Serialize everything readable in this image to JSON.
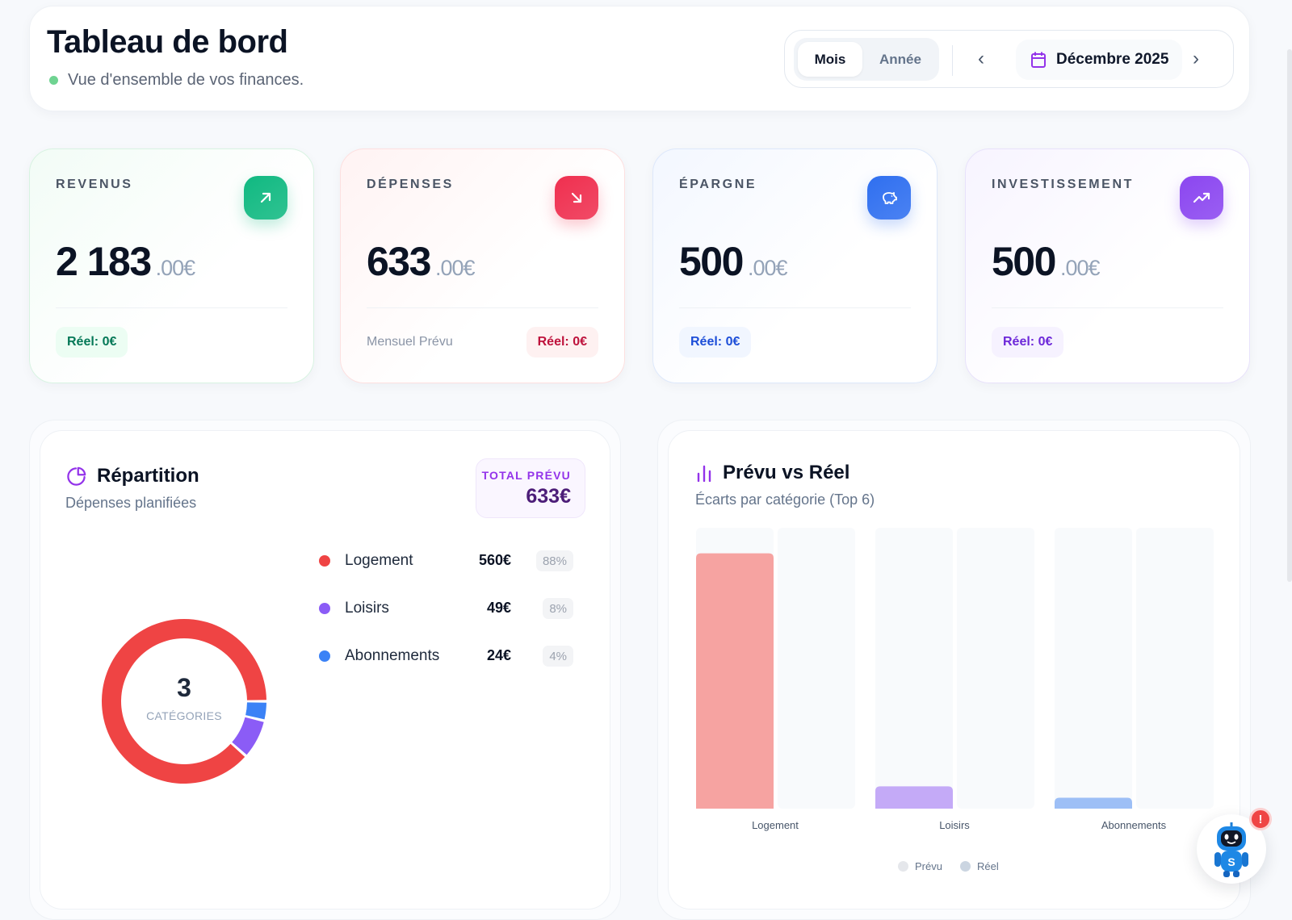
{
  "header": {
    "title": "Tableau de bord",
    "subtitle": "Vue d'ensemble de vos finances.",
    "view_toggle": {
      "options": [
        "Mois",
        "Année"
      ],
      "selected": "Mois"
    },
    "period": "Décembre 2025",
    "icons": {
      "prev": "chevron-left-icon",
      "next": "chevron-right-icon",
      "calendar": "calendar-icon"
    }
  },
  "stats": [
    {
      "label": "REVENUS",
      "int": "2 183",
      "dec": ".00€",
      "reel": "Réel: 0€",
      "icon": "arrow-up-right-icon",
      "color": "#10b981",
      "pill_bg": "#ecfdf3",
      "pill_fg": "#047857"
    },
    {
      "label": "DÉPENSES",
      "int": "633",
      "dec": ".00€",
      "reel": "Réel: 0€",
      "note": "Mensuel Prévu",
      "icon": "arrow-down-right-icon",
      "color": "#ef2f4f",
      "pill_bg": "#fef1f1",
      "pill_fg": "#be123c"
    },
    {
      "label": "ÉPARGNE",
      "int": "500",
      "dec": ".00€",
      "reel": "Réel: 0€",
      "icon": "piggy-bank-icon",
      "color": "#2f6ff0",
      "pill_bg": "#f1f6ff",
      "pill_fg": "#1d4ed8"
    },
    {
      "label": "INVESTISSEMENT",
      "int": "500",
      "dec": ".00€",
      "reel": "Réel: 0€",
      "icon": "trending-up-icon",
      "color": "#8b46f0",
      "pill_bg": "#f6f2ff",
      "pill_fg": "#6d28d9"
    }
  ],
  "repartition": {
    "title": "Répartition",
    "subtitle": "Dépenses planifiées",
    "total_label": "TOTAL PRÉVU",
    "total_value": "633€",
    "center_count": "3",
    "center_label": "CATÉGORIES",
    "items": [
      {
        "name": "Logement",
        "amount": "560€",
        "pct": "88%",
        "value": 560,
        "color": "#ef4444"
      },
      {
        "name": "Loisirs",
        "amount": "49€",
        "pct": "8%",
        "value": 49,
        "color": "#8b5cf6"
      },
      {
        "name": "Abonnements",
        "amount": "24€",
        "pct": "4%",
        "value": 24,
        "color": "#3b82f6"
      }
    ]
  },
  "chart_data": {
    "type": "bar",
    "title": "Prévu vs Réel",
    "subtitle": "Écarts par catégorie (Top 6)",
    "categories": [
      "Logement",
      "Loisirs",
      "Abonnements"
    ],
    "series": [
      {
        "name": "Prévu",
        "values": [
          560,
          49,
          24
        ],
        "colors": [
          "#f6a3a1",
          "#c4aaf7",
          "#9dbff6"
        ]
      },
      {
        "name": "Réel",
        "values": [
          0,
          0,
          0
        ],
        "color": "#cbd5e1"
      }
    ],
    "ylim": [
      0,
      616
    ],
    "grid": false,
    "legend": "bottom",
    "legend_colors": {
      "Prévu": "#e5e7eb",
      "Réel": "#cbd5e1"
    }
  },
  "assistant": {
    "badge": "!",
    "mascot_letter": "S"
  }
}
